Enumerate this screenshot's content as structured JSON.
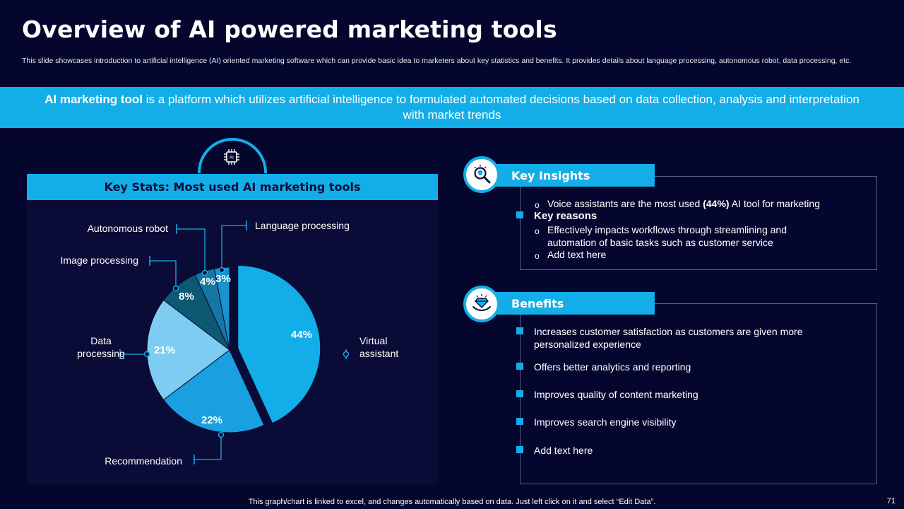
{
  "title": "Overview of AI powered marketing tools",
  "subtitle": "This slide showcases introduction to artificial intelligence (AI) oriented marketing software which can provide basic idea to marketers about key statistics and benefits. It provides details about language processing, autonomous robot, data processing, etc.",
  "banner": {
    "bold": "AI marketing tool",
    "text": " is a platform which utilizes artificial intelligence to formulated automated decisions based on data collection, analysis and interpretation with market trends"
  },
  "icons": {
    "dome": "ai-chip-icon",
    "insights": "lightbulb-magnifier-icon",
    "benefits": "diamond-hand-icon"
  },
  "chip_label": "AI",
  "panel_title": "Key Stats: Most used AI marketing tools",
  "chart_data": {
    "type": "pie",
    "categories": [
      "Virtual assistant",
      "Recommendation",
      "Data processing",
      "Image processing",
      "Autonomous robot",
      "Language processing"
    ],
    "values": [
      44,
      22,
      21,
      8,
      4,
      3
    ],
    "labels": [
      "44%",
      "22%",
      "21%",
      "8%",
      "4%",
      "3%"
    ],
    "colors": [
      "#13aee8",
      "#1a9fe0",
      "#7dcdf3",
      "#0d5873",
      "#1676a3",
      "#1893cf"
    ],
    "exploded": "Virtual assistant",
    "label_lines": [
      [
        "Virtual",
        "assistant"
      ],
      [
        "Recommendation"
      ],
      [
        "Data",
        "processing"
      ],
      [
        "Image processing"
      ],
      [
        "Autonomous robot"
      ],
      [
        "Language processing"
      ]
    ]
  },
  "key_insights": {
    "title": "Key Insights",
    "line1_pre": "Voice assistants are the most used ",
    "line1_bold": "(44%)",
    "line1_post": " AI tool for marketing",
    "reasons_title": "Key reasons",
    "reason1_a": "Effectively impacts workflows through streamlining and",
    "reason1_b": "automation of basic tasks such as customer service",
    "reason2": "Add text here"
  },
  "benefits": {
    "title": "Benefits",
    "items": [
      [
        "Increases customer satisfaction as customers are given more",
        "personalized experience"
      ],
      [
        "Offers better analytics and reporting"
      ],
      [
        "Improves quality of content marketing"
      ],
      [
        "Improves search engine visibility"
      ],
      [
        "Add text here"
      ]
    ]
  },
  "footer": "This graph/chart is linked to excel, and changes automatically based on data. Just left click on it and select “Edit Data”.",
  "page_number": "71",
  "colors": {
    "background": "#04062e",
    "accent": "#13aee8",
    "panel": "#0a0b36"
  }
}
